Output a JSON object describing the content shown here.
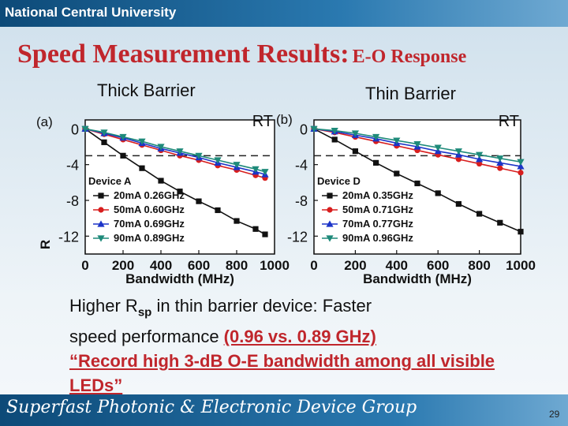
{
  "header": {
    "university": "National Central University"
  },
  "title": {
    "main": "Speed Measurement Results:",
    "sub": "E-O Response"
  },
  "panels": {
    "left": {
      "heading": "Thick Barrier",
      "tag": "(a)",
      "condition": "RT",
      "device": "Device A"
    },
    "right": {
      "heading": "Thin Barrier",
      "tag": "(b)",
      "condition": "RT",
      "device": "Device D"
    }
  },
  "chart_data": [
    {
      "type": "line",
      "xlabel": "Bandwidth (MHz)",
      "ylabel": "R",
      "xlim": [
        0,
        1000
      ],
      "ylim": [
        -14,
        1
      ],
      "xticks": [
        "0",
        "200",
        "400",
        "600",
        "800",
        "1000"
      ],
      "yticks": [
        "0",
        "-4",
        "-8",
        "-12"
      ],
      "reference_line": -3,
      "series": [
        {
          "name": "20mA 0.26GHz",
          "color": "#111111",
          "marker": "square",
          "x": [
            0,
            100,
            200,
            300,
            400,
            500,
            600,
            700,
            800,
            900,
            950
          ],
          "y": [
            0,
            -1.5,
            -3.0,
            -4.4,
            -5.8,
            -7.0,
            -8.1,
            -9.1,
            -10.3,
            -11.2,
            -11.8
          ]
        },
        {
          "name": "50mA 0.60GHz",
          "color": "#d81e1e",
          "marker": "circle",
          "x": [
            0,
            100,
            200,
            300,
            400,
            500,
            600,
            700,
            800,
            900,
            950
          ],
          "y": [
            0,
            -0.6,
            -1.2,
            -1.8,
            -2.4,
            -3.0,
            -3.5,
            -4.1,
            -4.6,
            -5.2,
            -5.5
          ]
        },
        {
          "name": "70mA 0.69GHz",
          "color": "#1c34c8",
          "marker": "triangle-up",
          "x": [
            0,
            100,
            200,
            300,
            400,
            500,
            600,
            700,
            800,
            900,
            950
          ],
          "y": [
            0,
            -0.5,
            -1.0,
            -1.6,
            -2.2,
            -2.7,
            -3.2,
            -3.8,
            -4.3,
            -4.8,
            -5.1
          ]
        },
        {
          "name": "90mA 0.89GHz",
          "color": "#1e8a7a",
          "marker": "triangle-down",
          "x": [
            0,
            100,
            200,
            300,
            400,
            500,
            600,
            700,
            800,
            900,
            950
          ],
          "y": [
            0,
            -0.4,
            -0.9,
            -1.4,
            -2.0,
            -2.5,
            -3.0,
            -3.5,
            -4.0,
            -4.5,
            -4.8
          ]
        }
      ]
    },
    {
      "type": "line",
      "xlabel": "Bandwidth (MHz)",
      "xlim": [
        0,
        1000
      ],
      "ylim": [
        -14,
        1
      ],
      "xticks": [
        "0",
        "200",
        "400",
        "600",
        "800",
        "1000"
      ],
      "yticks": [
        "0",
        "-4",
        "-8",
        "-12"
      ],
      "reference_line": -3,
      "series": [
        {
          "name": "20mA 0.35GHz",
          "color": "#111111",
          "marker": "square",
          "x": [
            0,
            100,
            200,
            300,
            400,
            500,
            600,
            700,
            800,
            900,
            1000
          ],
          "y": [
            0,
            -1.2,
            -2.5,
            -3.8,
            -5.0,
            -6.1,
            -7.2,
            -8.4,
            -9.5,
            -10.5,
            -11.5
          ]
        },
        {
          "name": "50mA 0.71GHz",
          "color": "#d81e1e",
          "marker": "circle",
          "x": [
            0,
            100,
            200,
            300,
            400,
            500,
            600,
            700,
            800,
            900,
            1000
          ],
          "y": [
            0,
            -0.4,
            -0.9,
            -1.4,
            -1.9,
            -2.4,
            -2.9,
            -3.4,
            -3.9,
            -4.4,
            -4.9
          ]
        },
        {
          "name": "70mA 0.77GHz",
          "color": "#1c34c8",
          "marker": "triangle-up",
          "x": [
            0,
            100,
            200,
            300,
            400,
            500,
            600,
            700,
            800,
            900,
            1000
          ],
          "y": [
            0,
            -0.3,
            -0.7,
            -1.1,
            -1.6,
            -2.0,
            -2.5,
            -2.9,
            -3.4,
            -3.8,
            -4.2
          ]
        },
        {
          "name": "90mA 0.96GHz",
          "color": "#1e8a7a",
          "marker": "triangle-down",
          "x": [
            0,
            100,
            200,
            300,
            400,
            500,
            600,
            700,
            800,
            900,
            1000
          ],
          "y": [
            0,
            -0.2,
            -0.5,
            -0.9,
            -1.3,
            -1.7,
            -2.1,
            -2.5,
            -2.9,
            -3.3,
            -3.7
          ]
        }
      ]
    }
  ],
  "body": {
    "line1_pre": "Higher R",
    "line1_sub": "sp",
    "line1_post": " in thin barrier device: Faster",
    "line2_pre": "speed performance ",
    "line2_highlight": "(0.96 vs. 0.89 GHz)",
    "quote": "“Record high 3-dB O-E bandwidth among all visible LEDs”"
  },
  "footer": {
    "group": "Superfast Photonic & Electronic Device Group",
    "page": "29"
  }
}
